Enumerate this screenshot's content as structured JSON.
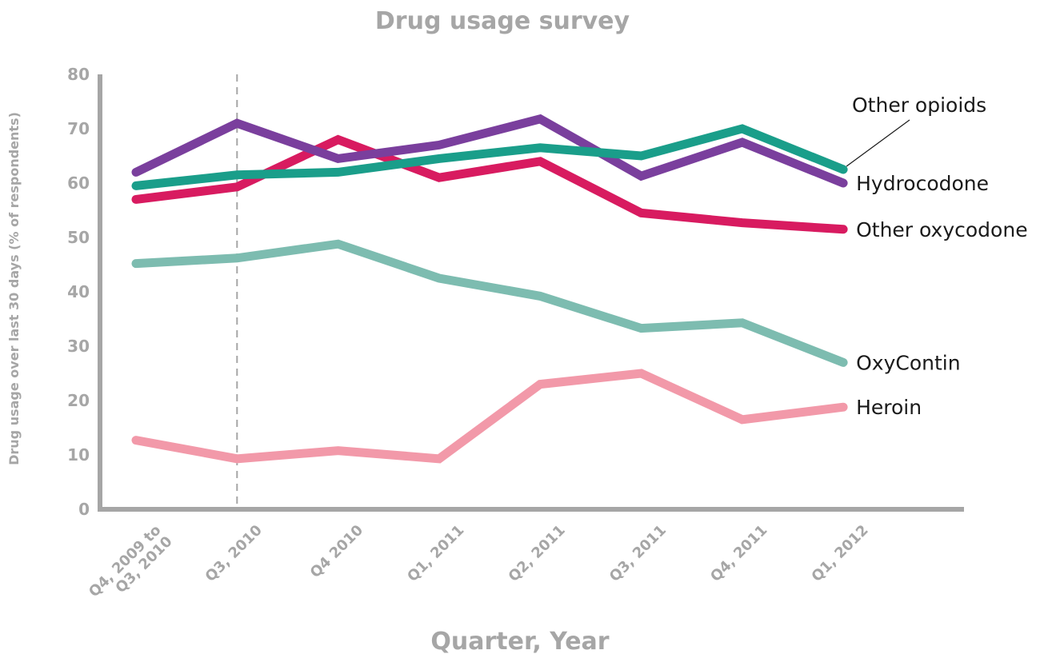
{
  "chart_data": {
    "type": "line",
    "title": "Drug usage survey",
    "xlabel": "Quarter, Year",
    "ylabel": "Drug usage over last 30 days (% of respondents)",
    "ylim": [
      0,
      80
    ],
    "yticks": [
      0,
      10,
      20,
      30,
      40,
      50,
      60,
      70,
      80
    ],
    "grid": false,
    "legend": "direct labels at line ends (right)",
    "categories": [
      [
        "Q4, 2009 to",
        "Q3, 2010"
      ],
      [
        "Q3, 2010"
      ],
      [
        "Q4 2010"
      ],
      [
        "Q1, 2011"
      ],
      [
        "Q2, 2011"
      ],
      [
        "Q3, 2011"
      ],
      [
        "Q4, 2011"
      ],
      [
        "Q1, 2012"
      ]
    ],
    "reference_line": {
      "category_index": 1,
      "style": "dashed"
    },
    "series": [
      {
        "name": "Other opioids",
        "color": "#1a9e8a",
        "values": [
          59.5,
          61.5,
          62,
          64.5,
          66.5,
          65,
          70,
          62.5
        ]
      },
      {
        "name": "Hydrocodone",
        "color": "#7a3f9d",
        "values": [
          62,
          71,
          64.5,
          67,
          71.8,
          61.3,
          67.5,
          60
        ]
      },
      {
        "name": "Other oxycodone",
        "color": "#d81b60",
        "values": [
          57,
          59.3,
          68,
          61,
          64,
          54.5,
          52.7,
          51.5
        ]
      },
      {
        "name": "OxyContin",
        "color": "#7dbcb0",
        "values": [
          45.2,
          46.2,
          48.8,
          42.5,
          39.2,
          33.3,
          34.3,
          27
        ]
      },
      {
        "name": "Heroin",
        "color": "#f299a9",
        "values": [
          12.7,
          9.3,
          10.8,
          9.3,
          23,
          25,
          16.5,
          18.8
        ]
      }
    ]
  }
}
